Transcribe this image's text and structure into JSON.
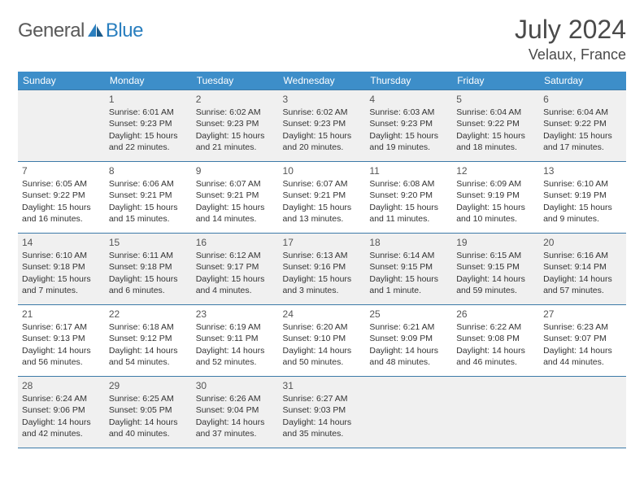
{
  "logo": {
    "text1": "General",
    "text2": "Blue"
  },
  "header": {
    "month_title": "July 2024",
    "location": "Velaux, France"
  },
  "colors": {
    "header_bg": "#3d8ec9",
    "header_fg": "#ffffff",
    "row_border": "#3d7aa8",
    "alt_row_bg": "#f0f0f0",
    "logo_gray": "#5a5a5a",
    "logo_blue": "#2a7fbf",
    "title_color": "#4a4a4a"
  },
  "day_headers": [
    "Sunday",
    "Monday",
    "Tuesday",
    "Wednesday",
    "Thursday",
    "Friday",
    "Saturday"
  ],
  "weeks": [
    [
      null,
      {
        "n": "1",
        "sr": "6:01 AM",
        "ss": "9:23 PM",
        "d1": "15 hours",
        "d2": "and 22 minutes."
      },
      {
        "n": "2",
        "sr": "6:02 AM",
        "ss": "9:23 PM",
        "d1": "15 hours",
        "d2": "and 21 minutes."
      },
      {
        "n": "3",
        "sr": "6:02 AM",
        "ss": "9:23 PM",
        "d1": "15 hours",
        "d2": "and 20 minutes."
      },
      {
        "n": "4",
        "sr": "6:03 AM",
        "ss": "9:23 PM",
        "d1": "15 hours",
        "d2": "and 19 minutes."
      },
      {
        "n": "5",
        "sr": "6:04 AM",
        "ss": "9:22 PM",
        "d1": "15 hours",
        "d2": "and 18 minutes."
      },
      {
        "n": "6",
        "sr": "6:04 AM",
        "ss": "9:22 PM",
        "d1": "15 hours",
        "d2": "and 17 minutes."
      }
    ],
    [
      {
        "n": "7",
        "sr": "6:05 AM",
        "ss": "9:22 PM",
        "d1": "15 hours",
        "d2": "and 16 minutes."
      },
      {
        "n": "8",
        "sr": "6:06 AM",
        "ss": "9:21 PM",
        "d1": "15 hours",
        "d2": "and 15 minutes."
      },
      {
        "n": "9",
        "sr": "6:07 AM",
        "ss": "9:21 PM",
        "d1": "15 hours",
        "d2": "and 14 minutes."
      },
      {
        "n": "10",
        "sr": "6:07 AM",
        "ss": "9:21 PM",
        "d1": "15 hours",
        "d2": "and 13 minutes."
      },
      {
        "n": "11",
        "sr": "6:08 AM",
        "ss": "9:20 PM",
        "d1": "15 hours",
        "d2": "and 11 minutes."
      },
      {
        "n": "12",
        "sr": "6:09 AM",
        "ss": "9:19 PM",
        "d1": "15 hours",
        "d2": "and 10 minutes."
      },
      {
        "n": "13",
        "sr": "6:10 AM",
        "ss": "9:19 PM",
        "d1": "15 hours",
        "d2": "and 9 minutes."
      }
    ],
    [
      {
        "n": "14",
        "sr": "6:10 AM",
        "ss": "9:18 PM",
        "d1": "15 hours",
        "d2": "and 7 minutes."
      },
      {
        "n": "15",
        "sr": "6:11 AM",
        "ss": "9:18 PM",
        "d1": "15 hours",
        "d2": "and 6 minutes."
      },
      {
        "n": "16",
        "sr": "6:12 AM",
        "ss": "9:17 PM",
        "d1": "15 hours",
        "d2": "and 4 minutes."
      },
      {
        "n": "17",
        "sr": "6:13 AM",
        "ss": "9:16 PM",
        "d1": "15 hours",
        "d2": "and 3 minutes."
      },
      {
        "n": "18",
        "sr": "6:14 AM",
        "ss": "9:15 PM",
        "d1": "15 hours",
        "d2": "and 1 minute."
      },
      {
        "n": "19",
        "sr": "6:15 AM",
        "ss": "9:15 PM",
        "d1": "14 hours",
        "d2": "and 59 minutes."
      },
      {
        "n": "20",
        "sr": "6:16 AM",
        "ss": "9:14 PM",
        "d1": "14 hours",
        "d2": "and 57 minutes."
      }
    ],
    [
      {
        "n": "21",
        "sr": "6:17 AM",
        "ss": "9:13 PM",
        "d1": "14 hours",
        "d2": "and 56 minutes."
      },
      {
        "n": "22",
        "sr": "6:18 AM",
        "ss": "9:12 PM",
        "d1": "14 hours",
        "d2": "and 54 minutes."
      },
      {
        "n": "23",
        "sr": "6:19 AM",
        "ss": "9:11 PM",
        "d1": "14 hours",
        "d2": "and 52 minutes."
      },
      {
        "n": "24",
        "sr": "6:20 AM",
        "ss": "9:10 PM",
        "d1": "14 hours",
        "d2": "and 50 minutes."
      },
      {
        "n": "25",
        "sr": "6:21 AM",
        "ss": "9:09 PM",
        "d1": "14 hours",
        "d2": "and 48 minutes."
      },
      {
        "n": "26",
        "sr": "6:22 AM",
        "ss": "9:08 PM",
        "d1": "14 hours",
        "d2": "and 46 minutes."
      },
      {
        "n": "27",
        "sr": "6:23 AM",
        "ss": "9:07 PM",
        "d1": "14 hours",
        "d2": "and 44 minutes."
      }
    ],
    [
      {
        "n": "28",
        "sr": "6:24 AM",
        "ss": "9:06 PM",
        "d1": "14 hours",
        "d2": "and 42 minutes."
      },
      {
        "n": "29",
        "sr": "6:25 AM",
        "ss": "9:05 PM",
        "d1": "14 hours",
        "d2": "and 40 minutes."
      },
      {
        "n": "30",
        "sr": "6:26 AM",
        "ss": "9:04 PM",
        "d1": "14 hours",
        "d2": "and 37 minutes."
      },
      {
        "n": "31",
        "sr": "6:27 AM",
        "ss": "9:03 PM",
        "d1": "14 hours",
        "d2": "and 35 minutes."
      },
      null,
      null,
      null
    ]
  ],
  "labels": {
    "sunrise": "Sunrise:",
    "sunset": "Sunset:",
    "daylight": "Daylight:"
  }
}
